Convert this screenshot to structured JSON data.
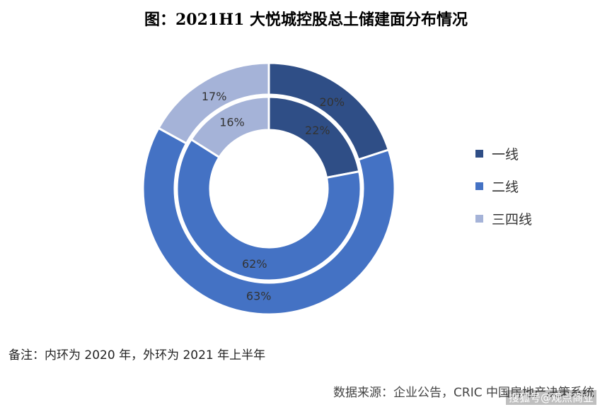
{
  "title": "图：2021H1 大悦城控股总土储建面分布情况",
  "note": "备注：内环为 2020 年，外环为 2021 年上半年",
  "source": "数据来源：企业公告，CRIC 中国房地产决策系统",
  "watermark": "搜狐号@观点商业",
  "chart_data": {
    "type": "donut",
    "categories": [
      "一线",
      "二线",
      "三四线"
    ],
    "colors": [
      "#2F4E86",
      "#4472C4",
      "#A5B3D8"
    ],
    "rings": [
      {
        "name": "外环",
        "values": [
          20,
          63,
          17
        ],
        "labels": [
          "20%",
          "63%",
          "17%"
        ]
      },
      {
        "name": "内环",
        "values": [
          22,
          62,
          16
        ],
        "labels": [
          "22%",
          "62%",
          "16%"
        ]
      }
    ],
    "legend_position": "right"
  }
}
